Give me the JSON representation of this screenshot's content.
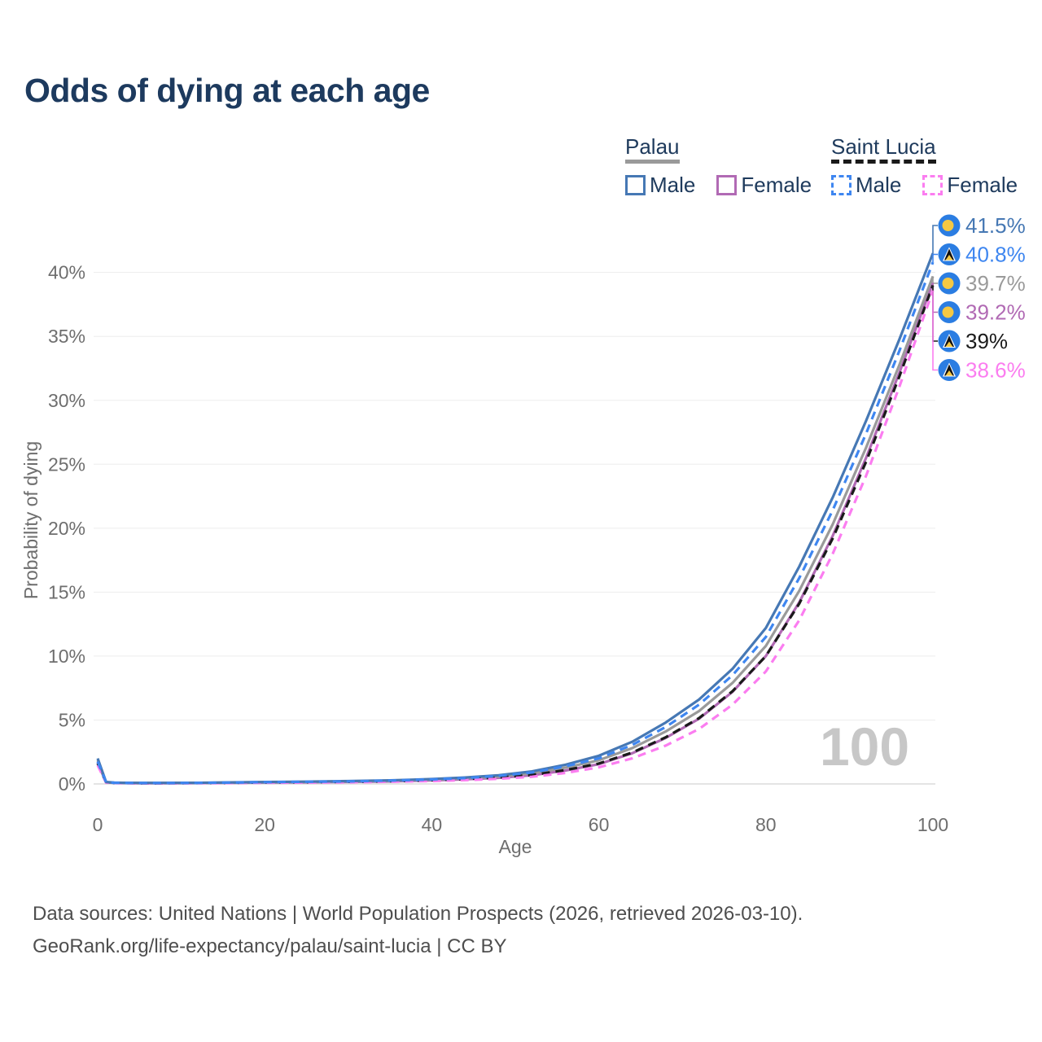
{
  "title": "Odds of dying at each age",
  "watermark": "100",
  "colors": {
    "title_text": "#1d3a5e",
    "legend_text": "#1e3a5c",
    "axis_text": "#6e6e6e",
    "grid": "#ededed",
    "watermark": "#c7c7c7",
    "flag_blue": "#2b7de2",
    "flag_gold": "#f5c843",
    "palau_male": "#4678b4",
    "palau_female": "#b16ab4",
    "palau_total": "#9a9a9a",
    "stlucia_male": "#3e86f0",
    "stlucia_female": "#fb7df0",
    "stlucia_total": "#1a1a1a"
  },
  "legend": {
    "groups": [
      {
        "id": "palau",
        "label": "Palau",
        "items": [
          {
            "label": "Male"
          },
          {
            "label": "Female"
          }
        ]
      },
      {
        "id": "saint-lucia",
        "label": "Saint Lucia",
        "items": [
          {
            "label": "Male"
          },
          {
            "label": "Female"
          }
        ]
      }
    ]
  },
  "chart_data": {
    "type": "line",
    "title": "Odds of dying at each age",
    "xlabel": "Age",
    "ylabel": "Probability of dying",
    "xlim": [
      0,
      100
    ],
    "ylim": [
      0,
      42
    ],
    "grid": "horizontal",
    "x_ticks": [
      0,
      20,
      40,
      60,
      80,
      100
    ],
    "x_tick_labels": [
      "0",
      "20",
      "40",
      "60",
      "80",
      "100"
    ],
    "y_ticks": [
      0,
      5,
      10,
      15,
      20,
      25,
      30,
      35,
      40
    ],
    "y_tick_labels": [
      "0%",
      "5%",
      "10%",
      "15%",
      "20%",
      "25%",
      "30%",
      "35%",
      "40%"
    ],
    "x": [
      0,
      1,
      2,
      3,
      5,
      8,
      12,
      16,
      20,
      25,
      30,
      35,
      40,
      44,
      48,
      52,
      56,
      60,
      64,
      68,
      72,
      76,
      80,
      84,
      88,
      92,
      96,
      100
    ],
    "series": [
      {
        "name": "Palau Female",
        "country": "Palau",
        "sex": "Female",
        "style": "solid",
        "color": "#b16ab4",
        "z": 1,
        "values": [
          1.65,
          0.12,
          0.08,
          0.07,
          0.06,
          0.06,
          0.07,
          0.09,
          0.11,
          0.13,
          0.16,
          0.2,
          0.28,
          0.36,
          0.48,
          0.68,
          1.05,
          1.55,
          2.4,
          3.6,
          5.1,
          7.2,
          10.0,
          14.2,
          19.4,
          25.5,
          32.2,
          39.2
        ]
      },
      {
        "name": "Palau Total",
        "country": "Palau",
        "sex": "Total",
        "style": "solid",
        "color": "#9a9a9a",
        "z": 2,
        "values": [
          1.85,
          0.14,
          0.09,
          0.08,
          0.07,
          0.07,
          0.08,
          0.11,
          0.13,
          0.16,
          0.19,
          0.24,
          0.33,
          0.43,
          0.58,
          0.83,
          1.28,
          1.85,
          2.8,
          4.1,
          5.7,
          7.9,
          10.8,
          15.1,
          20.3,
          26.3,
          32.8,
          39.7
        ]
      },
      {
        "name": "Saint Lucia Total",
        "country": "Saint Lucia",
        "sex": "Total",
        "style": "dashed",
        "color": "#1a1a1a",
        "z": 3,
        "values": [
          1.6,
          0.12,
          0.08,
          0.07,
          0.06,
          0.06,
          0.07,
          0.09,
          0.12,
          0.14,
          0.17,
          0.21,
          0.29,
          0.38,
          0.5,
          0.7,
          1.08,
          1.6,
          2.45,
          3.65,
          5.15,
          7.25,
          10.0,
          14.1,
          19.2,
          25.2,
          31.9,
          39.0
        ]
      },
      {
        "name": "Saint Lucia Female",
        "country": "Saint Lucia",
        "sex": "Female",
        "style": "dashed",
        "color": "#fb7df0",
        "z": 4,
        "values": [
          1.45,
          0.1,
          0.07,
          0.06,
          0.05,
          0.05,
          0.06,
          0.07,
          0.09,
          0.11,
          0.13,
          0.17,
          0.23,
          0.3,
          0.4,
          0.56,
          0.86,
          1.3,
          2.0,
          3.0,
          4.3,
          6.2,
          8.8,
          12.8,
          18.0,
          24.1,
          31.1,
          38.6
        ]
      },
      {
        "name": "Palau Male",
        "country": "Palau",
        "sex": "Male",
        "style": "solid",
        "color": "#4678b4",
        "z": 5,
        "values": [
          2.0,
          0.15,
          0.1,
          0.09,
          0.08,
          0.08,
          0.09,
          0.12,
          0.15,
          0.18,
          0.22,
          0.28,
          0.38,
          0.5,
          0.68,
          0.98,
          1.5,
          2.2,
          3.3,
          4.8,
          6.6,
          9.0,
          12.2,
          17.0,
          22.4,
          28.4,
          34.8,
          41.5
        ]
      },
      {
        "name": "Saint Lucia Male",
        "country": "Saint Lucia",
        "sex": "Male",
        "style": "dashed",
        "color": "#3e86f0",
        "z": 6,
        "values": [
          1.75,
          0.13,
          0.09,
          0.08,
          0.07,
          0.07,
          0.08,
          0.11,
          0.14,
          0.17,
          0.2,
          0.26,
          0.35,
          0.46,
          0.63,
          0.9,
          1.38,
          2.0,
          3.05,
          4.45,
          6.2,
          8.5,
          11.5,
          16.1,
          21.4,
          27.4,
          33.9,
          40.8
        ]
      }
    ],
    "annotations": [
      {
        "text": "41.5%",
        "value": 41.5,
        "flag": "palau",
        "series": "Palau Male",
        "color": "#4678b4"
      },
      {
        "text": "40.8%",
        "value": 40.8,
        "flag": "saint-lucia",
        "series": "Saint Lucia Male",
        "color": "#3e86f0"
      },
      {
        "text": "39.7%",
        "value": 39.7,
        "flag": "palau",
        "series": "Palau Total",
        "color": "#9a9a9a"
      },
      {
        "text": "39.2%",
        "value": 39.2,
        "flag": "palau",
        "series": "Palau Female",
        "color": "#b16ab4"
      },
      {
        "text": "39%",
        "value": 39.0,
        "flag": "saint-lucia",
        "series": "Saint Lucia Total",
        "color": "#1a1a1a"
      },
      {
        "text": "38.6%",
        "value": 38.6,
        "flag": "saint-lucia",
        "series": "Saint Lucia Female",
        "color": "#fb7df0"
      }
    ]
  },
  "footer": {
    "line1": "Data sources: United Nations | World Population Prospects (2026, retrieved 2026-03-10).",
    "line2": "GeoRank.org/life-expectancy/palau/saint-lucia | CC BY"
  }
}
